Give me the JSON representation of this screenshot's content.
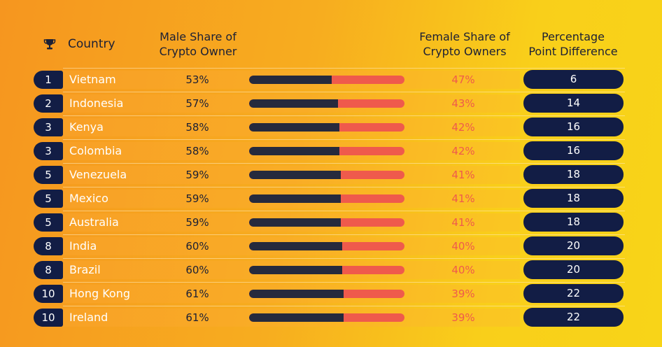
{
  "colors": {
    "navy": "#121d45",
    "male_bar": "#262a3d",
    "female": "#ef5a4c"
  },
  "header": {
    "trophy_icon": "trophy-icon",
    "country": "Country",
    "male": [
      "Male Share of",
      "Crypto Owner"
    ],
    "female": [
      "Female Share of",
      "Crypto Owners"
    ],
    "diff": [
      "Percentage",
      "Point Difference"
    ]
  },
  "chart_data": {
    "type": "table",
    "columns": [
      "Rank",
      "Country",
      "Male Share of Crypto Owner",
      "Female Share of Crypto Owners",
      "Percentage Point Difference"
    ],
    "rows": [
      {
        "rank": "1",
        "country": "Vietnam",
        "male": 53,
        "female": 47,
        "diff": 6
      },
      {
        "rank": "2",
        "country": "Indonesia",
        "male": 57,
        "female": 43,
        "diff": 14
      },
      {
        "rank": "3",
        "country": "Kenya",
        "male": 58,
        "female": 42,
        "diff": 16
      },
      {
        "rank": "3",
        "country": "Colombia",
        "male": 58,
        "female": 42,
        "diff": 16
      },
      {
        "rank": "5",
        "country": "Venezuela",
        "male": 59,
        "female": 41,
        "diff": 18
      },
      {
        "rank": "5",
        "country": "Mexico",
        "male": 59,
        "female": 41,
        "diff": 18
      },
      {
        "rank": "5",
        "country": "Australia",
        "male": 59,
        "female": 41,
        "diff": 18
      },
      {
        "rank": "8",
        "country": "India",
        "male": 60,
        "female": 40,
        "diff": 20
      },
      {
        "rank": "8",
        "country": "Brazil",
        "male": 60,
        "female": 40,
        "diff": 20
      },
      {
        "rank": "10",
        "country": "Hong Kong",
        "male": 61,
        "female": 39,
        "diff": 22
      },
      {
        "rank": "10",
        "country": "Ireland",
        "male": 61,
        "female": 39,
        "diff": 22
      }
    ]
  }
}
